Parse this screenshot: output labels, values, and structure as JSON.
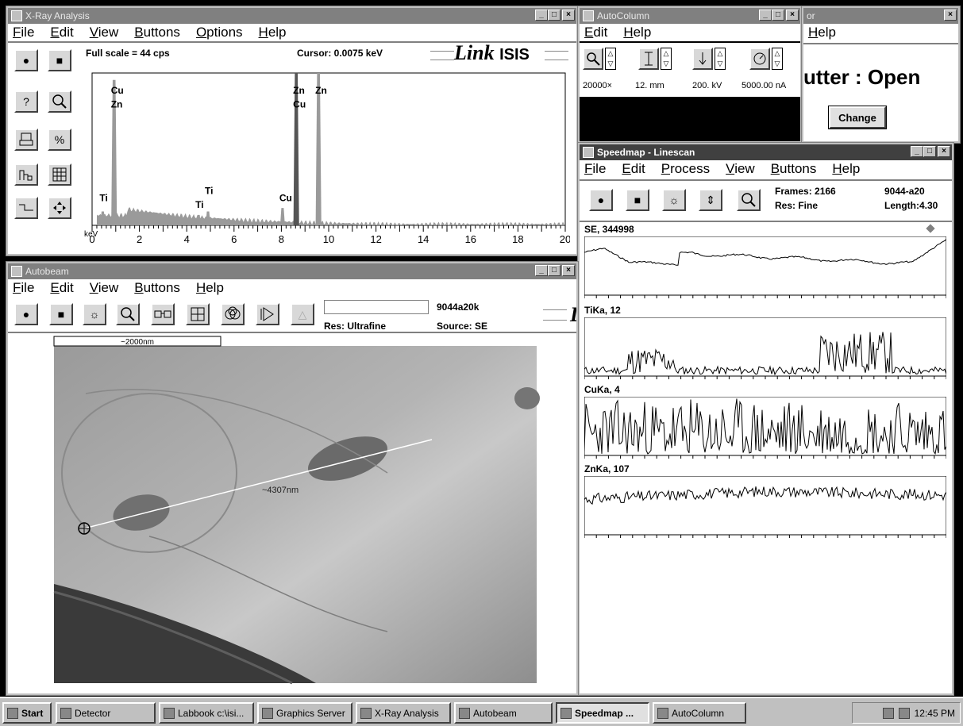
{
  "xray": {
    "title": "X-Ray Analysis",
    "menu": [
      "File",
      "Edit",
      "View",
      "Buttons",
      "Options",
      "Help"
    ],
    "full_scale": "Full scale = 44  cps",
    "cursor": "Cursor:  0.0075 keV",
    "logo_link": "Link",
    "logo_isis": "ISIS",
    "kev_label": "keV",
    "peak_labels": [
      "Cu",
      "Zn",
      "Zn",
      "Cu",
      "Zn",
      "Ti",
      "Ti",
      "Ti",
      "Cu"
    ]
  },
  "chart_data": {
    "type": "line",
    "title": "",
    "xlabel": "keV",
    "ylabel": "",
    "xlim": [
      0,
      20
    ],
    "x_ticks": [
      "0",
      "2",
      "4",
      "6",
      "8",
      "10",
      "12",
      "14",
      "16",
      "18",
      "20"
    ],
    "peaks": [
      {
        "label": "Ti",
        "x": 0.45,
        "y": 4
      },
      {
        "label": "Cu/Zn",
        "x": 0.93,
        "y": 42
      },
      {
        "label": "Ti",
        "x": 4.5,
        "y": 3
      },
      {
        "label": "Ti",
        "x": 4.9,
        "y": 4
      },
      {
        "label": "Cu",
        "x": 8.05,
        "y": 5
      },
      {
        "label": "Zn/Cu",
        "x": 8.63,
        "y": 44
      },
      {
        "label": "Zn",
        "x": 9.57,
        "y": 44
      }
    ]
  },
  "autocolumn": {
    "title": "AutoColumn",
    "menu": [
      "Edit",
      "Help"
    ],
    "values": [
      "20000×",
      "12. mm",
      "200. kV",
      "5000.00 nA"
    ]
  },
  "detector": {
    "title_fragment": "or",
    "menu": [
      "Help"
    ],
    "status": "utter : Open",
    "change_button": "Change"
  },
  "speedmap": {
    "title": "Speedmap - Linescan",
    "menu": [
      "File",
      "Edit",
      "Process",
      "View",
      "Buttons",
      "Help"
    ],
    "frames": "Frames:  2166",
    "res": "Res: Fine",
    "id": "9044-a20",
    "length": "Length:4.30",
    "traces": [
      "SE, 344998",
      "TiKa, 12",
      "CuKa, 4",
      "ZnKa, 107"
    ]
  },
  "autobeam": {
    "title": "Autobeam",
    "menu": [
      "File",
      "Edit",
      "View",
      "Buttons",
      "Help"
    ],
    "id": "9044a20k",
    "res": "Res: Ultrafine",
    "source": "Source: SE",
    "scalebar": "~2000nm",
    "line_label": "~4307nm"
  },
  "taskbar": {
    "start": "Start",
    "items": [
      "Detector",
      "Labbook c:\\isi...",
      "Graphics Server",
      "X-Ray Analysis",
      "Autobeam",
      "Speedmap ...",
      "AutoColumn"
    ],
    "clock": "12:45 PM"
  }
}
